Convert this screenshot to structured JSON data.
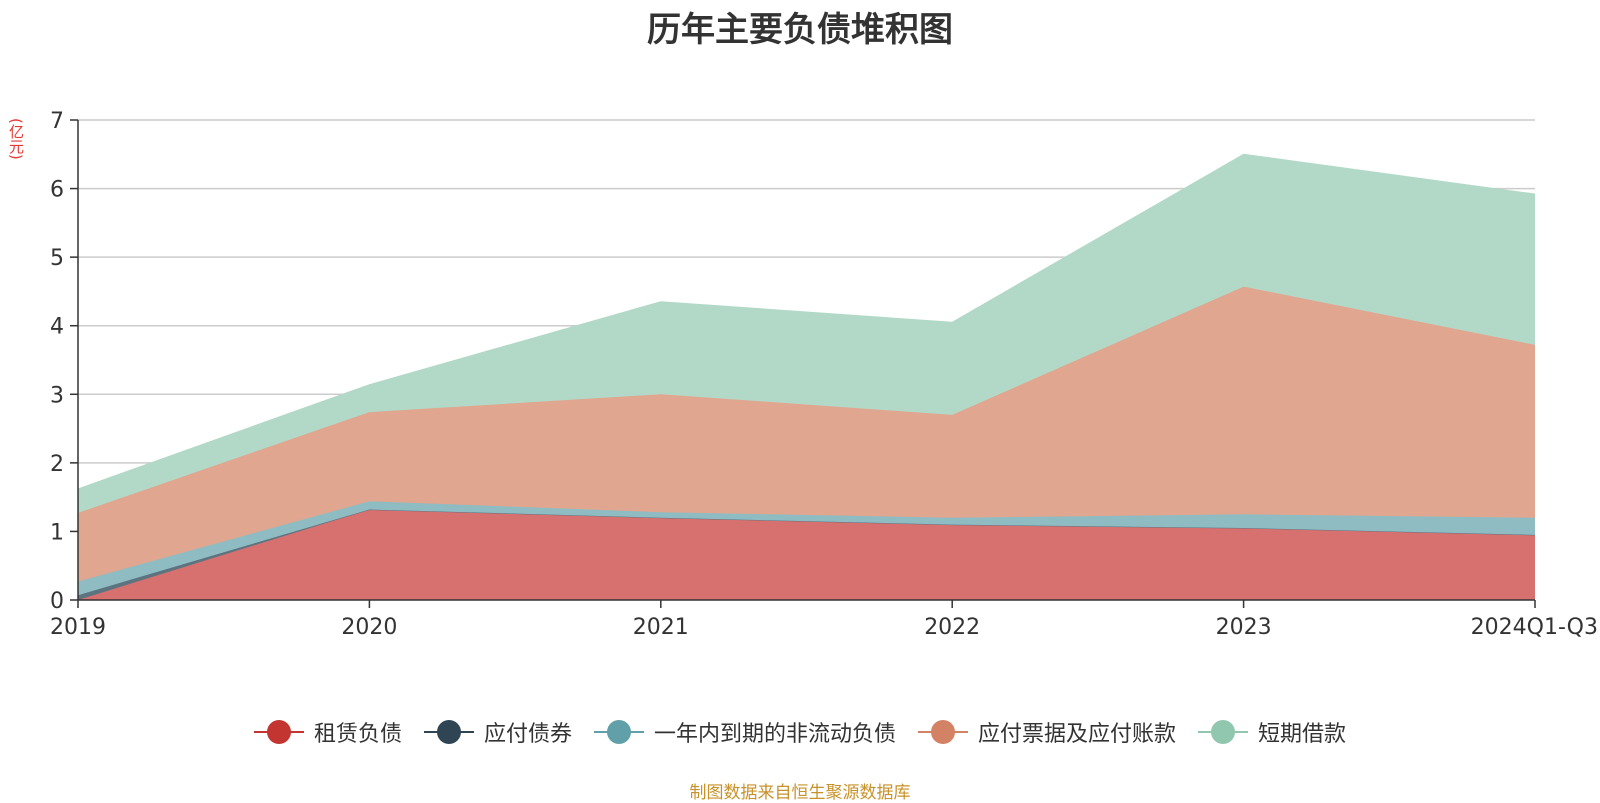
{
  "chart_data": {
    "type": "area",
    "stacked": true,
    "title": "历年主要负债堆积图",
    "y_unit_label": "(亿元)",
    "categories": [
      "2019",
      "2020",
      "2021",
      "2022",
      "2023",
      "2024Q1-Q3"
    ],
    "ylim": [
      0,
      7
    ],
    "yticks": [
      "0",
      "1",
      "2",
      "3",
      "4",
      "5",
      "6",
      "7"
    ],
    "grid": true,
    "legend_position": "bottom",
    "series": [
      {
        "name": "租赁负债",
        "color": "#c23531",
        "fill": "#d67170",
        "values": [
          0.0,
          1.32,
          1.2,
          1.1,
          1.05,
          0.95
        ]
      },
      {
        "name": "应付债券",
        "color": "#2f4554",
        "fill": "#5c7480",
        "values": [
          0.07,
          0.0,
          0.0,
          0.0,
          0.0,
          0.0
        ]
      },
      {
        "name": "一年内到期的非流动负债",
        "color": "#61a0a8",
        "fill": "#8fbcc2",
        "values": [
          0.2,
          0.12,
          0.08,
          0.1,
          0.2,
          0.25
        ]
      },
      {
        "name": "应付票据及应付账款",
        "color": "#d48265",
        "fill": "#e0a68f",
        "values": [
          1.0,
          1.3,
          1.72,
          1.5,
          3.32,
          2.52
        ]
      },
      {
        "name": "短期借款",
        "color": "#91c7ae",
        "fill": "#b2d9c7",
        "values": [
          0.35,
          0.4,
          1.35,
          1.35,
          1.93,
          2.2
        ]
      }
    ]
  },
  "source_note": "制图数据来自恒生聚源数据库"
}
